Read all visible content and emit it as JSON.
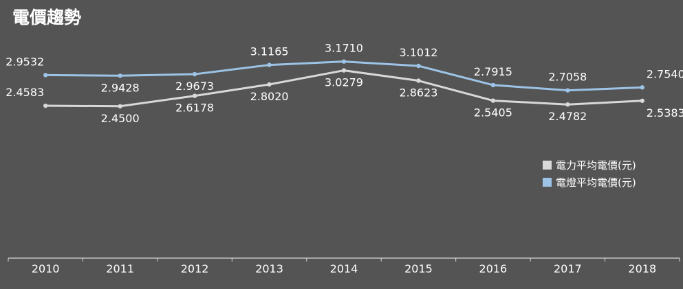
{
  "chart_data": {
    "type": "line",
    "title": "電價趨勢",
    "categories": [
      "2010",
      "2011",
      "2012",
      "2013",
      "2014",
      "2015",
      "2016",
      "2017",
      "2018"
    ],
    "ylim": [
      0,
      3.5
    ],
    "grid": false,
    "legend_position": "right",
    "series": [
      {
        "name": "電燈平均電價(元)",
        "color": "#9dc3e6",
        "values": [
          2.9532,
          2.9428,
          2.9673,
          3.1165,
          3.171,
          3.1012,
          2.7915,
          2.7058,
          2.754
        ],
        "labels": [
          "2.9532",
          "2.9428",
          "2.9673",
          "3.1165",
          "3.1710",
          "3.1012",
          "2.7915",
          "2.7058",
          "2.7540"
        ]
      },
      {
        "name": "電力平均電價(元)",
        "color": "#d9d9d9",
        "values": [
          2.4583,
          2.45,
          2.6178,
          2.802,
          3.0279,
          2.8623,
          2.5405,
          2.4782,
          2.5383
        ],
        "labels": [
          "2.4583",
          "2.4500",
          "2.6178",
          "2.8020",
          "3.0279",
          "2.8623",
          "2.5405",
          "2.4782",
          "2.5383"
        ]
      }
    ],
    "legend_order": [
      "電力平均電價(元)",
      "電燈平均電價(元)"
    ]
  }
}
